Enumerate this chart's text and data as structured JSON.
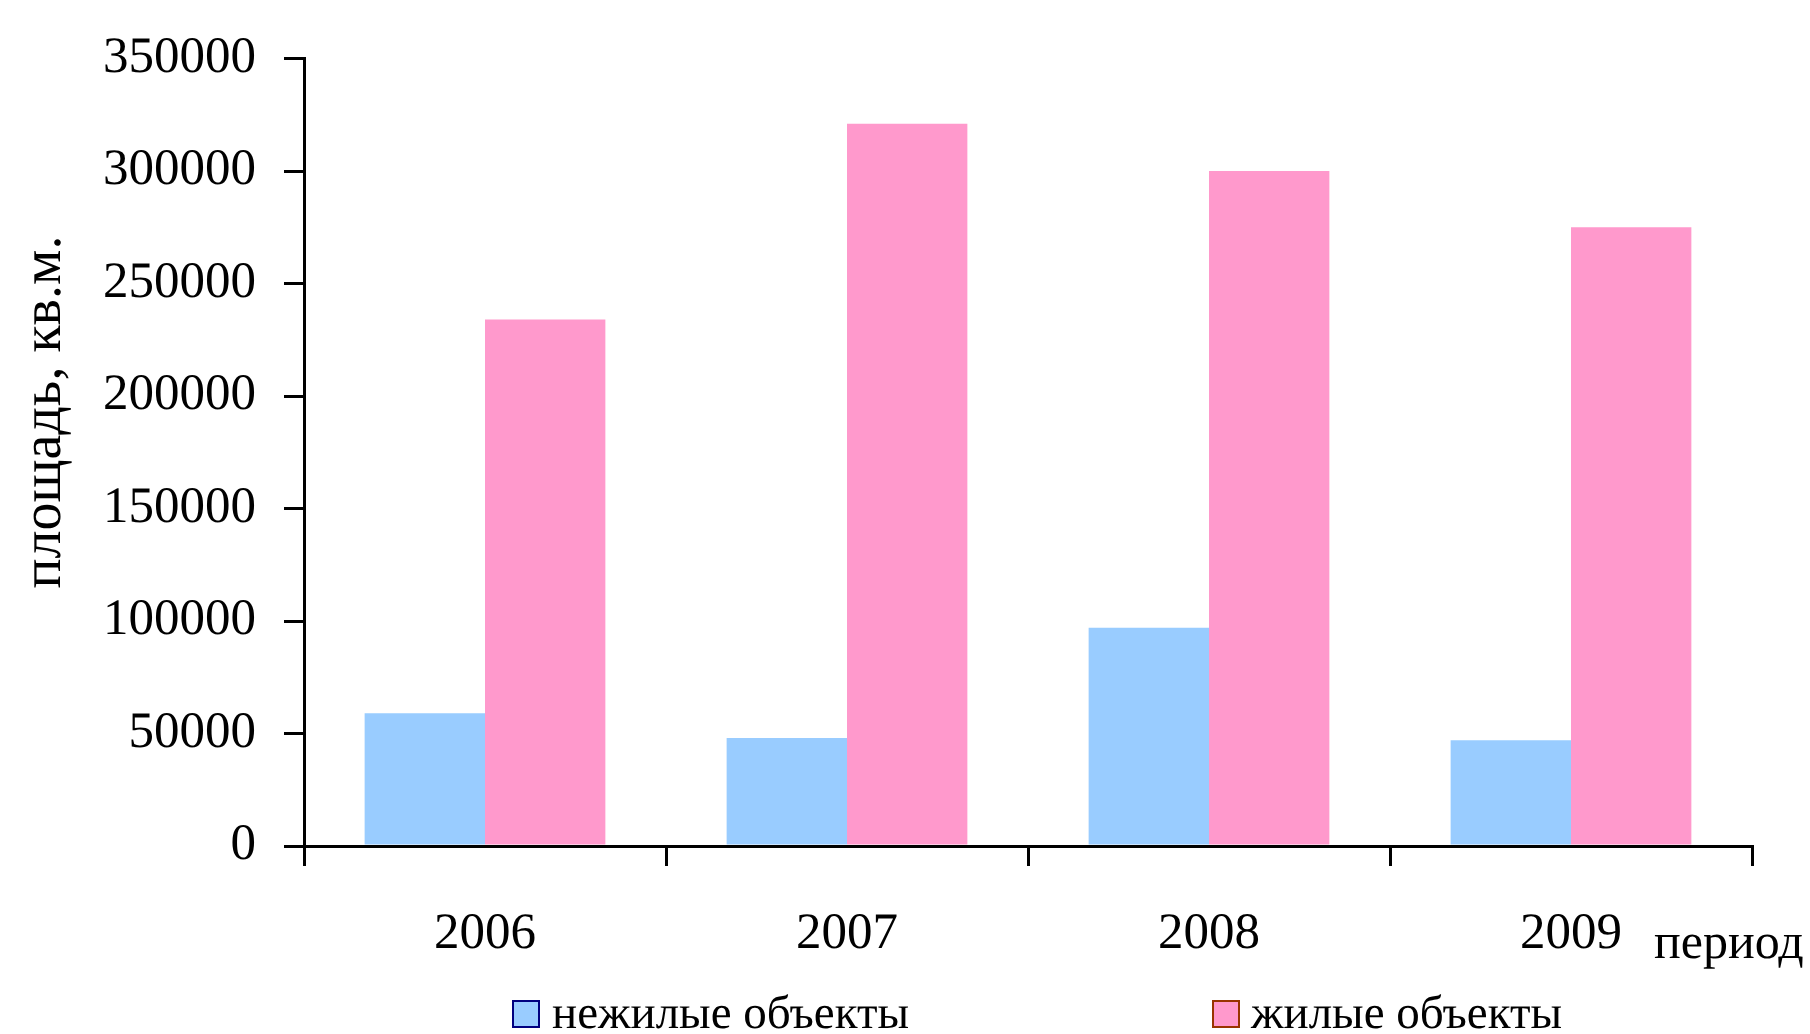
{
  "chart_data": {
    "type": "bar",
    "categories": [
      "2006",
      "2007",
      "2008",
      "2009"
    ],
    "series": [
      {
        "name": "нежилые объекты",
        "color": "#99ccff",
        "values": [
          59000,
          48000,
          97000,
          47000
        ]
      },
      {
        "name": "жилые объекты",
        "color": "#ff99cc",
        "values": [
          234000,
          321000,
          300000,
          275000
        ]
      }
    ],
    "xlabel": "период",
    "ylabel": "площадь, кв.м.",
    "ylim": [
      0,
      350000
    ],
    "yticks": [
      0,
      50000,
      100000,
      150000,
      200000,
      250000,
      300000,
      350000
    ],
    "grid": false,
    "legend": "bottom"
  }
}
